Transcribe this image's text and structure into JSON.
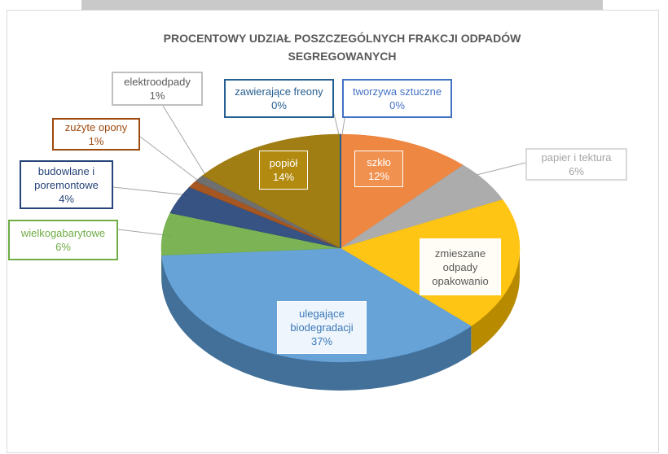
{
  "chart_data": {
    "type": "pie3d",
    "title": "PROCENTOWY UDZIAŁ POSZCZEGÓLNYCH FRAKCJI ODPADÓW SEGREGOWANYCH",
    "categories": [
      "tworzywa sztuczne",
      "szkło",
      "papier i tektura",
      "zmieszane odpady opakowanio",
      "ulegające biodegradacji",
      "wielkogabarytowe",
      "budowlane i poremontowe",
      "zużyte opony",
      "elektroodpady",
      "popiół",
      "zawierające freony"
    ],
    "values": [
      0,
      12,
      6,
      19,
      37,
      6,
      4,
      1,
      1,
      14,
      0
    ],
    "value_labels": [
      "0%",
      "12%",
      "6%",
      null,
      "37%",
      "6%",
      "4%",
      "1%",
      "1%",
      "14%",
      "0%"
    ],
    "colors": [
      "#4472c4",
      "#ed7d31",
      "#a5a5a5",
      "#ffc000",
      "#5b9bd5",
      "#70ad47",
      "#264478",
      "#9e480e",
      "#636363",
      "#997300",
      "#255e91"
    ]
  }
}
